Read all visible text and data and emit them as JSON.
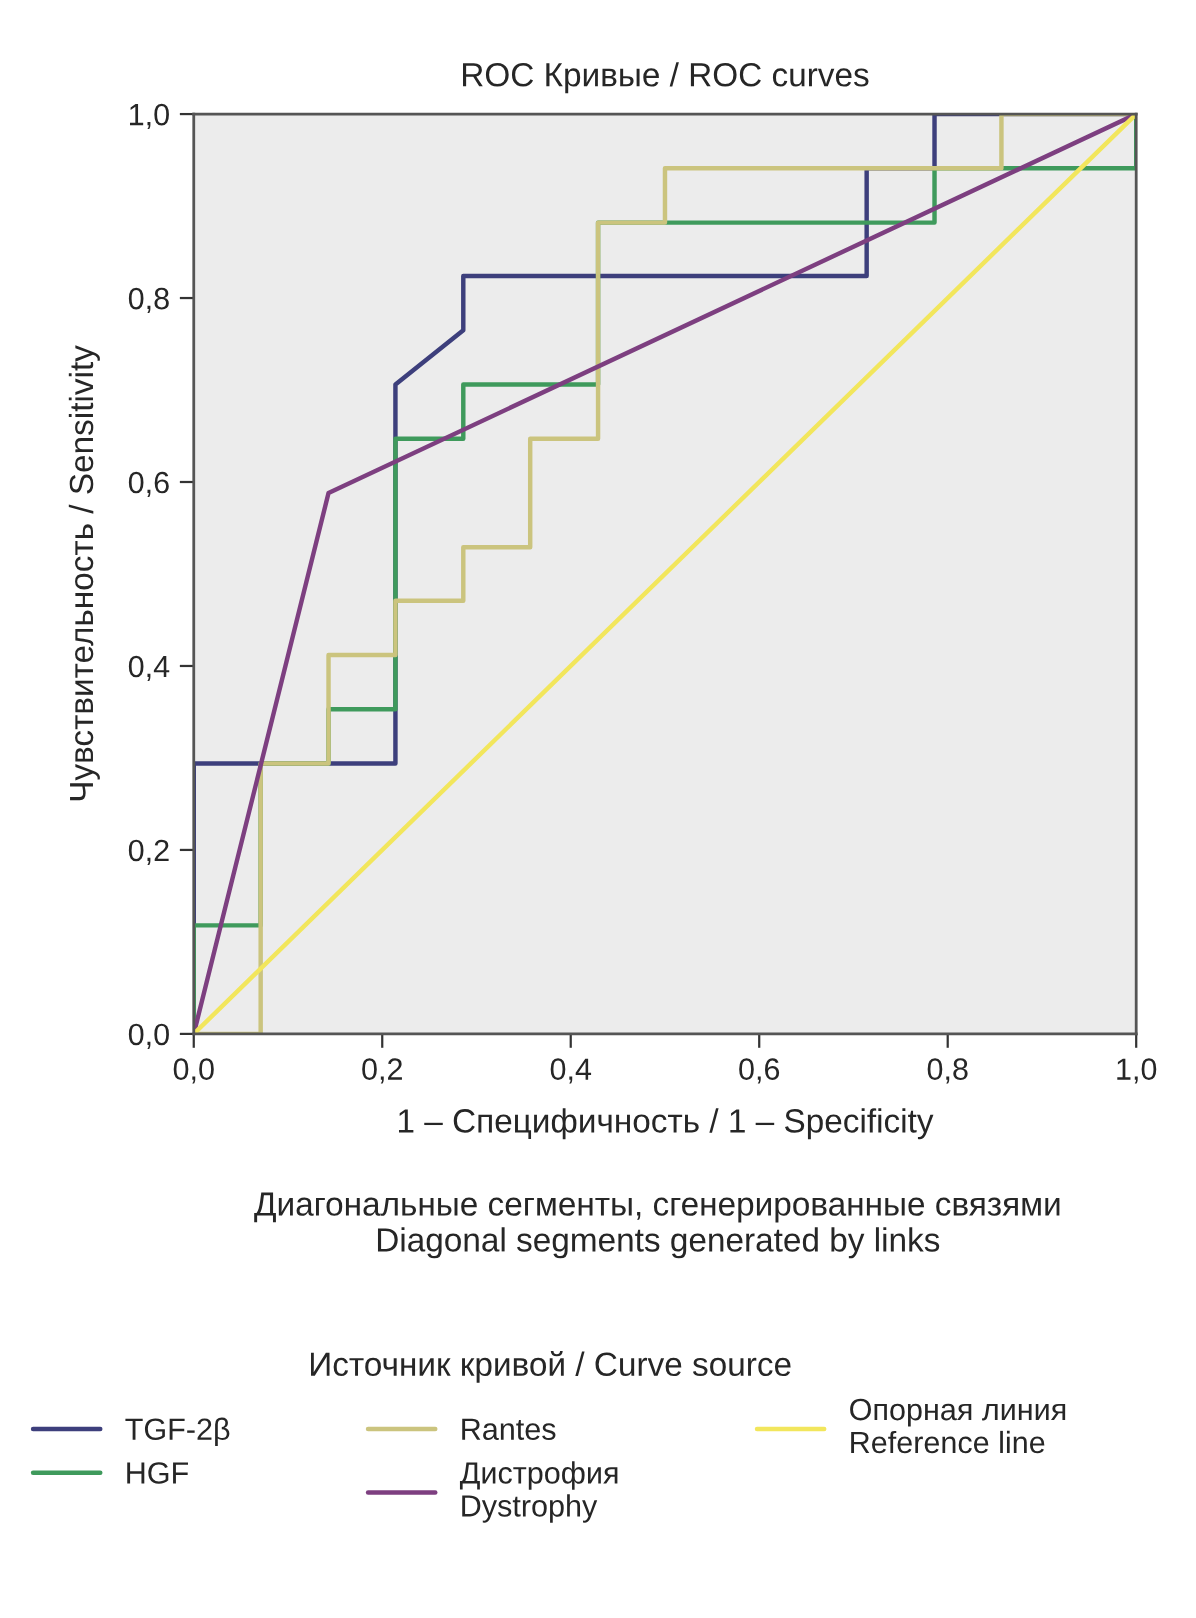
{
  "chart_data": {
    "type": "line",
    "title": "ROC Кривые / ROC curves",
    "xlabel": "1 – Специфичность / 1 – Specificity",
    "ylabel": "Чувствительность / Sensitivity",
    "legend_title": "Источник кривой / Curve source",
    "annotations": [
      "Диагональные сегменты, сгенерированные связями\nDiagonal segments generated by links"
    ],
    "series": [
      {
        "name": "TGF-2β",
        "color": "#3d3f7c",
        "x": [
          0,
          0,
          0.214,
          0.214,
          0.286,
          0.286,
          0.714,
          0.714,
          0.786,
          0.786,
          1
        ],
        "values": [
          0,
          0.294,
          0.294,
          0.706,
          0.765,
          0.824,
          0.824,
          0.941,
          0.941,
          1,
          1
        ]
      },
      {
        "name": "HGF",
        "color": "#3f9a5c",
        "x": [
          0,
          0,
          0.071,
          0.071,
          0.143,
          0.143,
          0.214,
          0.214,
          0.286,
          0.286,
          0.429,
          0.429,
          0.786,
          0.786,
          1,
          1
        ],
        "values": [
          0,
          0.118,
          0.118,
          0.294,
          0.294,
          0.353,
          0.353,
          0.647,
          0.647,
          0.706,
          0.706,
          0.882,
          0.882,
          0.941,
          0.941,
          1
        ]
      },
      {
        "name": "Rantes",
        "color": "#cbc47e",
        "x": [
          0,
          0.071,
          0.071,
          0.143,
          0.143,
          0.214,
          0.214,
          0.286,
          0.286,
          0.357,
          0.357,
          0.429,
          0.429,
          0.5,
          0.5,
          0.857,
          0.857,
          1
        ],
        "values": [
          0,
          0,
          0.294,
          0.294,
          0.412,
          0.412,
          0.471,
          0.471,
          0.529,
          0.529,
          0.647,
          0.647,
          0.882,
          0.882,
          0.941,
          0.941,
          1,
          1
        ]
      },
      {
        "name": "Дистрофия\nDystrophy",
        "color": "#7d3f80",
        "x": [
          0,
          0.143,
          1
        ],
        "values": [
          0,
          0.588,
          1
        ]
      },
      {
        "name": "Опорная линия\nReference line",
        "color": "#f2e65c",
        "x": [
          0,
          1
        ],
        "values": [
          0,
          1
        ]
      }
    ],
    "xlim": [
      0,
      1
    ],
    "ylim": [
      0,
      1
    ],
    "xticks": [
      {
        "value": 0,
        "label": "0,0"
      },
      {
        "value": 0.2,
        "label": "0,2"
      },
      {
        "value": 0.4,
        "label": "0,4"
      },
      {
        "value": 0.6,
        "label": "0,6"
      },
      {
        "value": 0.8,
        "label": "0,8"
      },
      {
        "value": 1,
        "label": "1,0"
      }
    ],
    "yticks": [
      {
        "value": 0,
        "label": "0,0"
      },
      {
        "value": 0.2,
        "label": "0,2"
      },
      {
        "value": 0.4,
        "label": "0,4"
      },
      {
        "value": 0.6,
        "label": "0,6"
      },
      {
        "value": 0.8,
        "label": "0,8"
      },
      {
        "value": 1,
        "label": "1,0"
      }
    ],
    "grid": false,
    "legend": "bottom"
  }
}
